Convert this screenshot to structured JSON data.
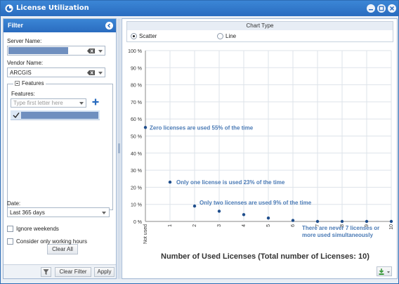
{
  "window": {
    "title": "License Utilization"
  },
  "filter": {
    "header": "Filter",
    "server_label": "Server Name:",
    "vendor_label": "Vendor Name:",
    "vendor_value": "ARCGIS",
    "features_group": "Features",
    "features_label": "Features:",
    "features_placeholder": "Type first letter here",
    "clear_all": "Clear All",
    "date_label": "Date:",
    "date_value": "Last 365 days",
    "ignore_weekends": "Ignore weekends",
    "working_hours": "Consider only working hours",
    "clear_filter": "Clear Filter",
    "apply": "Apply"
  },
  "chart_type": {
    "header": "Chart Type",
    "options": [
      "Scatter",
      "Line"
    ],
    "selected": "Scatter"
  },
  "chart_data": {
    "type": "scatter",
    "xlabel": "Number of Used Licenses (Total number of Licenses: 10)",
    "categories": [
      "Not used",
      "1",
      "2",
      "3",
      "4",
      "5",
      "6",
      "7",
      "8",
      "9",
      "10"
    ],
    "y_ticks": [
      "0 %",
      "10 %",
      "20 %",
      "30 %",
      "40 %",
      "50 %",
      "60 %",
      "70 %",
      "80 %",
      "90 %",
      "100 %"
    ],
    "ylim": [
      0,
      100
    ],
    "values": [
      55,
      23,
      9,
      6,
      4,
      2,
      0.6,
      0,
      0,
      0,
      0
    ],
    "point_color": "#1f4e8c",
    "annotation_color": "#4a7ab5",
    "annotations": [
      {
        "text": "Zero licenses are used 55% of the time"
      },
      {
        "text": "Only one license is used 23% of the time"
      },
      {
        "text": "Only two licenses are used 9% of the time"
      },
      {
        "text": "There are never 7 licenses or more used simultaneously"
      }
    ],
    "grid": true
  }
}
